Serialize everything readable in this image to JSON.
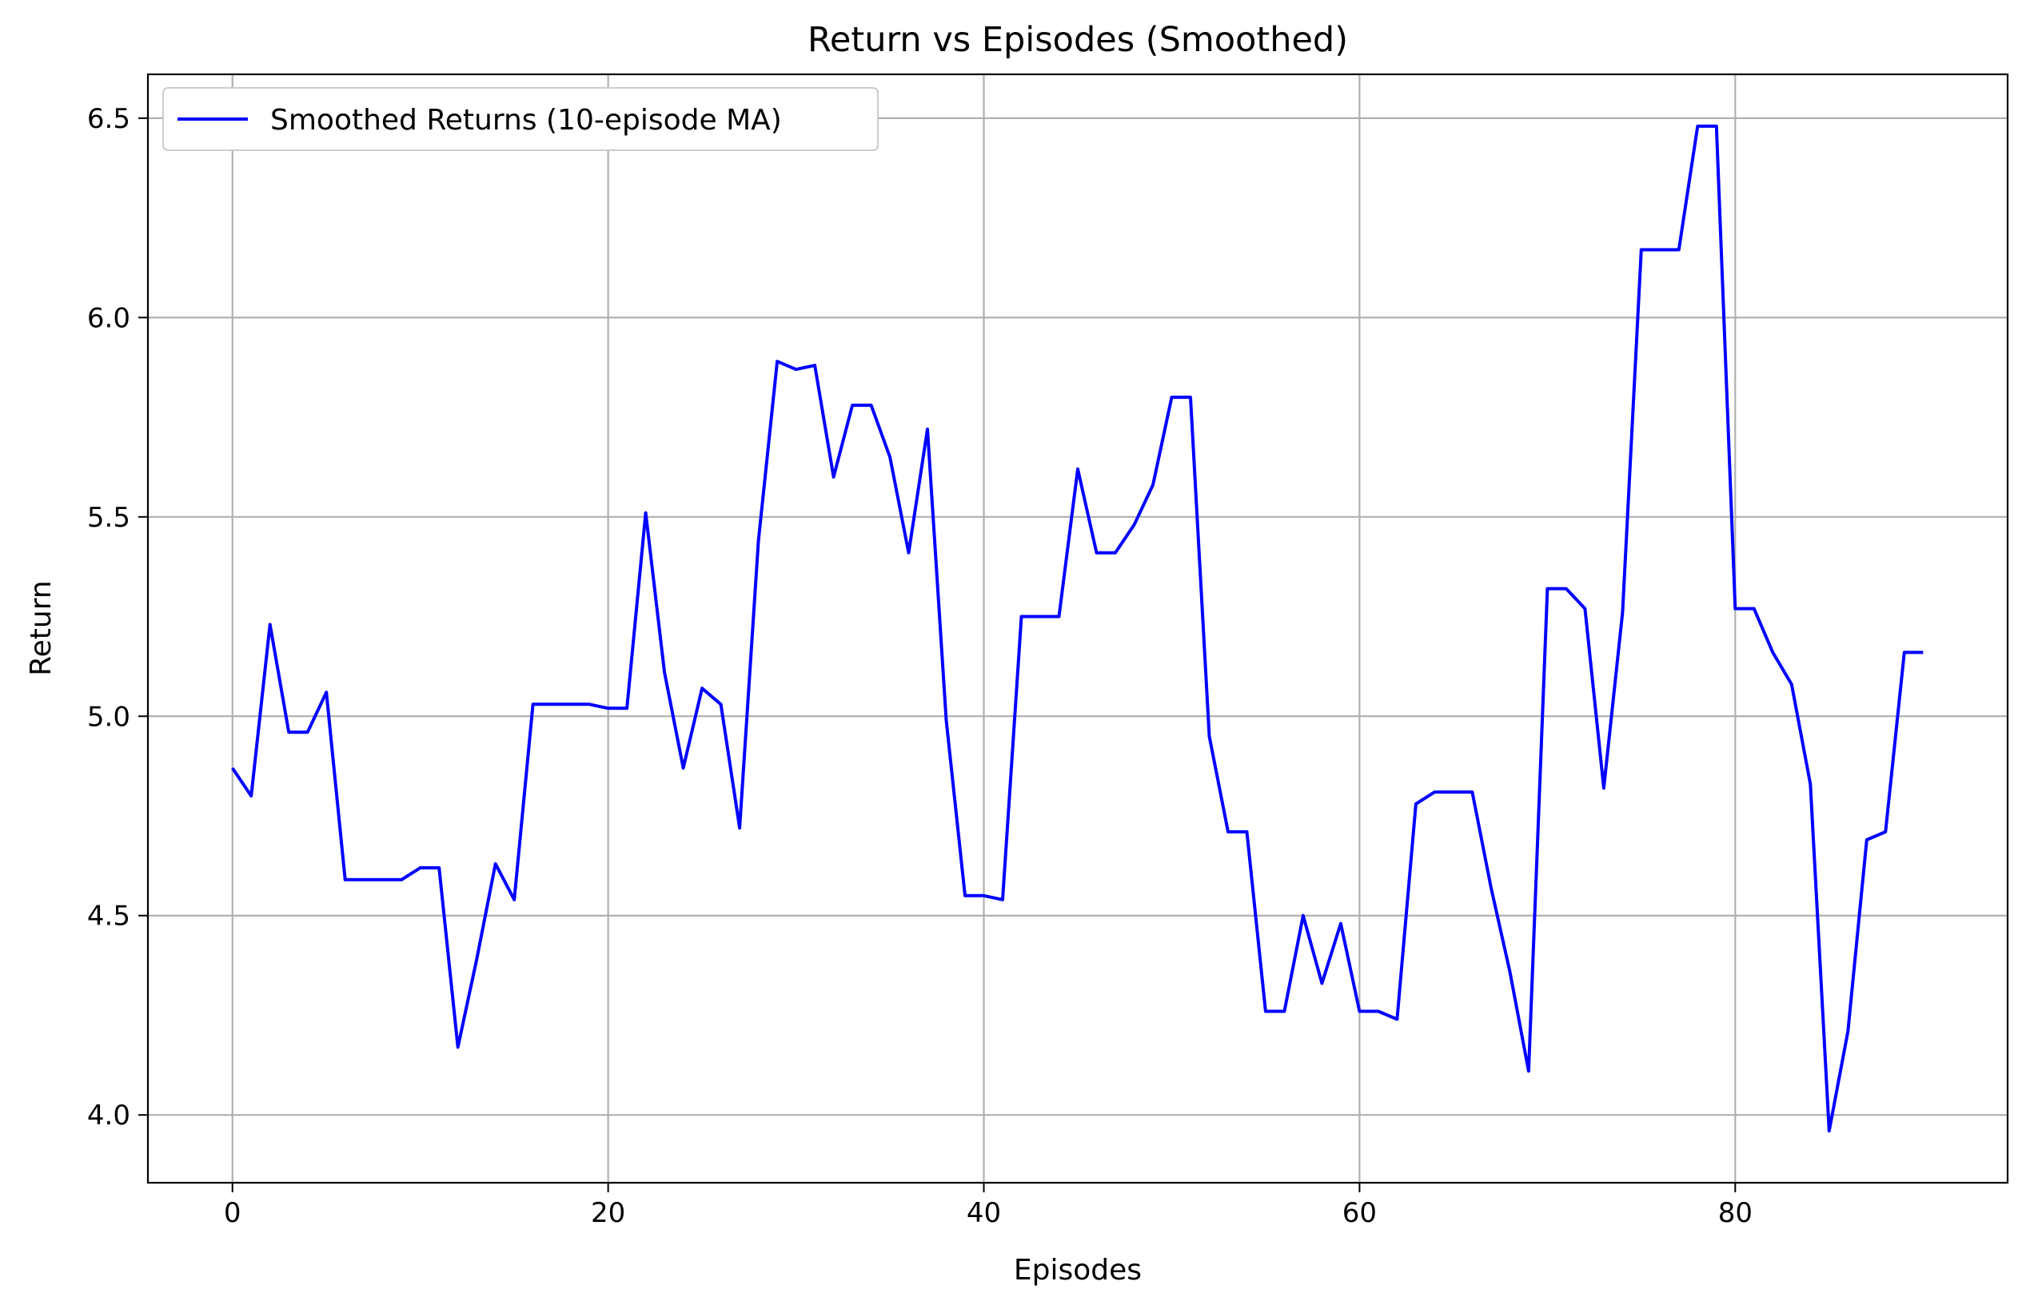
{
  "chart_data": {
    "type": "line",
    "title": "Return vs Episodes (Smoothed)",
    "xlabel": "Episodes",
    "ylabel": "Return",
    "xlim": [
      -4.5,
      94.5
    ],
    "ylim": [
      3.83,
      6.61
    ],
    "xticks": [
      0,
      20,
      40,
      60,
      80
    ],
    "yticks": [
      4.0,
      4.5,
      5.0,
      5.5,
      6.0,
      6.5
    ],
    "xtick_labels": [
      "0",
      "20",
      "40",
      "60",
      "80"
    ],
    "ytick_labels": [
      "4.0",
      "4.5",
      "5.0",
      "5.5",
      "6.0",
      "6.5"
    ],
    "grid": true,
    "legend_position": "upper-left",
    "series": [
      {
        "name": "Smoothed Returns (10-episode MA)",
        "color": "#0000ff",
        "x": [
          0,
          1,
          2,
          3,
          4,
          5,
          6,
          7,
          8,
          9,
          10,
          11,
          12,
          13,
          14,
          15,
          16,
          17,
          18,
          19,
          20,
          21,
          22,
          23,
          24,
          25,
          26,
          27,
          28,
          29,
          30,
          31,
          32,
          33,
          34,
          35,
          36,
          37,
          38,
          39,
          40,
          41,
          42,
          43,
          44,
          45,
          46,
          47,
          48,
          49,
          50,
          51,
          52,
          53,
          54,
          55,
          56,
          57,
          58,
          59,
          60,
          61,
          62,
          63,
          64,
          65,
          66,
          67,
          68,
          69,
          70,
          71,
          72,
          73,
          74,
          75,
          76,
          77,
          78,
          79,
          80,
          81,
          82,
          83,
          84,
          85,
          86,
          87,
          88,
          89,
          90
        ],
        "y": [
          4.87,
          4.8,
          5.23,
          4.96,
          4.96,
          5.06,
          4.59,
          4.59,
          4.59,
          4.59,
          4.62,
          4.62,
          4.17,
          4.39,
          4.63,
          4.54,
          5.03,
          5.03,
          5.03,
          5.03,
          5.02,
          5.02,
          5.51,
          5.11,
          4.87,
          5.07,
          5.03,
          4.72,
          5.44,
          5.89,
          5.87,
          5.88,
          5.6,
          5.78,
          5.78,
          5.65,
          5.41,
          5.72,
          4.99,
          4.55,
          4.55,
          4.54,
          5.25,
          5.25,
          5.25,
          5.62,
          5.41,
          5.41,
          5.48,
          5.58,
          5.8,
          5.8,
          4.95,
          4.71,
          4.71,
          4.26,
          4.26,
          4.5,
          4.33,
          4.48,
          4.26,
          4.26,
          4.24,
          4.78,
          4.81,
          4.81,
          4.81,
          4.57,
          4.36,
          4.11,
          5.32,
          5.32,
          5.27,
          4.82,
          5.26,
          6.17,
          6.17,
          6.17,
          6.48,
          6.48,
          5.27,
          5.27,
          5.16,
          5.08,
          4.83,
          3.96,
          4.21,
          4.69,
          4.71,
          5.16,
          5.16
        ]
      }
    ]
  }
}
